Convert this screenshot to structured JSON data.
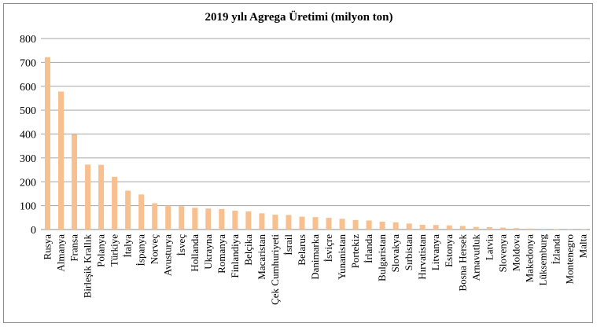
{
  "chart_data": {
    "type": "bar",
    "title": "2019 yılı Agrega Üretimi (milyon ton)",
    "xlabel": "",
    "ylabel": "",
    "ylim": [
      0,
      800
    ],
    "yticks": [
      0,
      100,
      200,
      300,
      400,
      500,
      600,
      700,
      800
    ],
    "grid": true,
    "legend": "none",
    "bar_color": "#f8c08e",
    "categories": [
      "Rusya",
      "Almanya",
      "Fransa",
      "Birleşik Krallık",
      "Polanya",
      "Türkiye",
      "İtalya",
      "İspanya",
      "Norveç",
      "Avusturya",
      "İsveç",
      "Hollanda",
      "Ukrayna",
      "Romanya",
      "Finlandiya",
      "Belçika",
      "Macaristan",
      "Çek Cumhuriyeti",
      "İsrail",
      "Belarus",
      "Danimarka",
      "İsviçre",
      "Yunanistan",
      "Portekiz",
      "İrlanda",
      "Bulgaristan",
      "Slovakya",
      "Sırbistan",
      "Hırvatistan",
      "Litvanya",
      "Estonya",
      "Bosna Hersek",
      "Arnavutluk",
      "Latvia",
      "Slovenya",
      "Moldova",
      "Makedonya",
      "Lüksemburg",
      "İzlanda",
      "Montenegro",
      "Malta"
    ],
    "values": [
      722,
      578,
      398,
      272,
      271,
      221,
      163,
      147,
      110,
      100,
      98,
      91,
      88,
      86,
      79,
      76,
      68,
      62,
      61,
      54,
      52,
      49,
      45,
      40,
      38,
      33,
      30,
      25,
      20,
      19,
      17,
      15,
      11,
      10,
      8,
      6,
      4,
      3,
      2,
      1,
      1
    ]
  }
}
